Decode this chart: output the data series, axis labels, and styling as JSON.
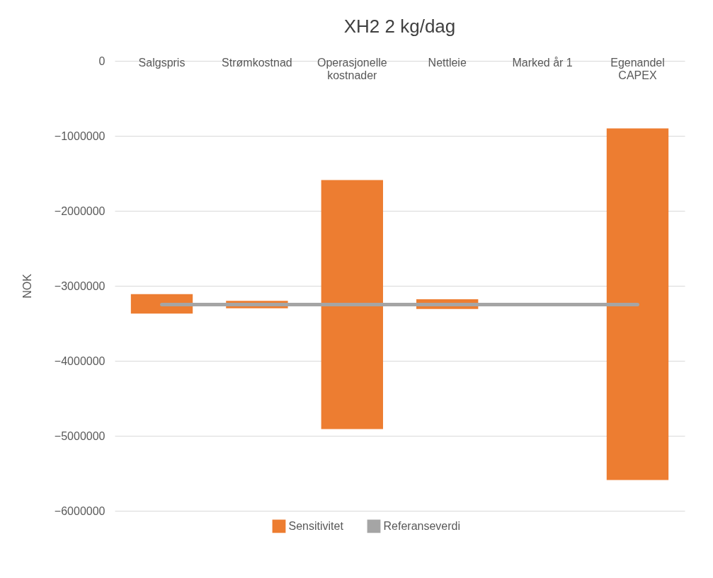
{
  "chart_data": {
    "type": "bar",
    "title": "XH2 2 kg/dag",
    "ylabel": "NOK",
    "categories": [
      "Salgspris",
      "Strømkostnad",
      "Operasjonelle kostnader",
      "Nettleie",
      "Marked år 1",
      "Egenandel CAPEX"
    ],
    "series": [
      {
        "name": "Sensitivitet",
        "color": "#ed7d31",
        "base": [
          -3370000,
          -3300000,
          -4910000,
          -3310000,
          null,
          -5590000
        ],
        "values": [
          260000,
          100000,
          3320000,
          130000,
          null,
          4690000
        ]
      },
      {
        "name": "Referanseverdi",
        "type": "line",
        "color": "#a5a5a5",
        "values": [
          -3250000,
          -3250000,
          -3250000,
          -3250000,
          -3250000,
          -3250000
        ]
      }
    ],
    "ylim": [
      -6000000,
      0
    ],
    "yticks": [
      0,
      -1000000,
      -2000000,
      -3000000,
      -4000000,
      -5000000,
      -6000000
    ],
    "grid": "y",
    "legend": "bottom",
    "marker": "none"
  }
}
